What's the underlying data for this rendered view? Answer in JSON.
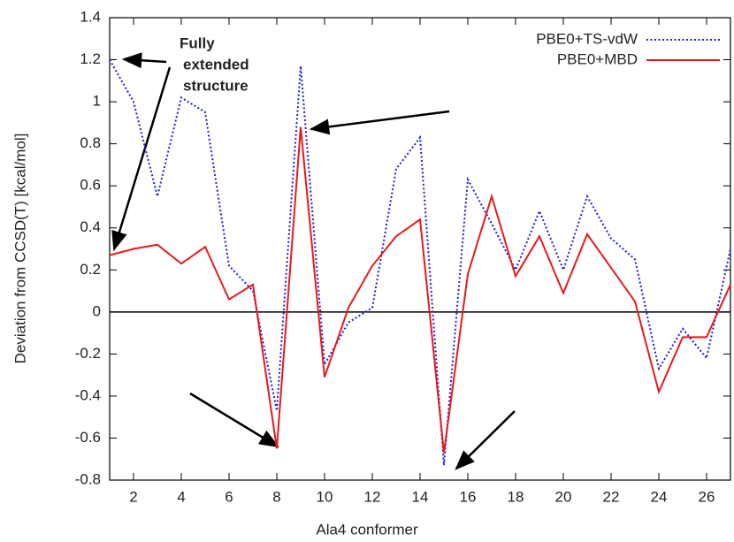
{
  "chart_data": {
    "type": "line",
    "xlabel": "Ala4 conformer",
    "ylabel": "Deviation from CCSD(T) [kcal/mol]",
    "annotation": [
      "Fully",
      "extended",
      "structure"
    ],
    "x": [
      1,
      2,
      3,
      4,
      5,
      6,
      7,
      8,
      9,
      10,
      11,
      12,
      13,
      14,
      15,
      16,
      17,
      18,
      19,
      20,
      21,
      22,
      23,
      24,
      25,
      26,
      27
    ],
    "series": [
      {
        "name": "PBE0+TS-vdW",
        "color": "#1f1fd6",
        "dash": true,
        "values": [
          1.2,
          1.0,
          0.55,
          1.02,
          0.95,
          0.22,
          0.1,
          -0.47,
          1.17,
          -0.25,
          -0.05,
          0.02,
          0.68,
          0.83,
          -0.73,
          0.63,
          0.42,
          0.2,
          0.48,
          0.2,
          0.55,
          0.35,
          0.25,
          -0.27,
          -0.08,
          -0.22,
          0.3
        ]
      },
      {
        "name": "PBE0+MBD",
        "color": "#e8191c",
        "dash": false,
        "values": [
          0.27,
          0.3,
          0.32,
          0.23,
          0.31,
          0.06,
          0.13,
          -0.65,
          0.88,
          -0.31,
          0.02,
          0.22,
          0.36,
          0.44,
          -0.67,
          0.18,
          0.55,
          0.17,
          0.36,
          0.09,
          0.37,
          0.21,
          0.05,
          -0.38,
          -0.12,
          -0.12,
          0.13
        ]
      }
    ],
    "xlim": [
      1,
      27
    ],
    "xticks": [
      2,
      4,
      6,
      8,
      10,
      12,
      14,
      16,
      18,
      20,
      22,
      24,
      26
    ],
    "ylim": [
      -0.8,
      1.4
    ],
    "yticks": [
      -0.8,
      -0.6,
      -0.4,
      -0.2,
      0,
      0.2,
      0.4,
      0.6,
      0.8,
      1,
      1.2,
      1.4
    ],
    "legend": "top-right"
  }
}
